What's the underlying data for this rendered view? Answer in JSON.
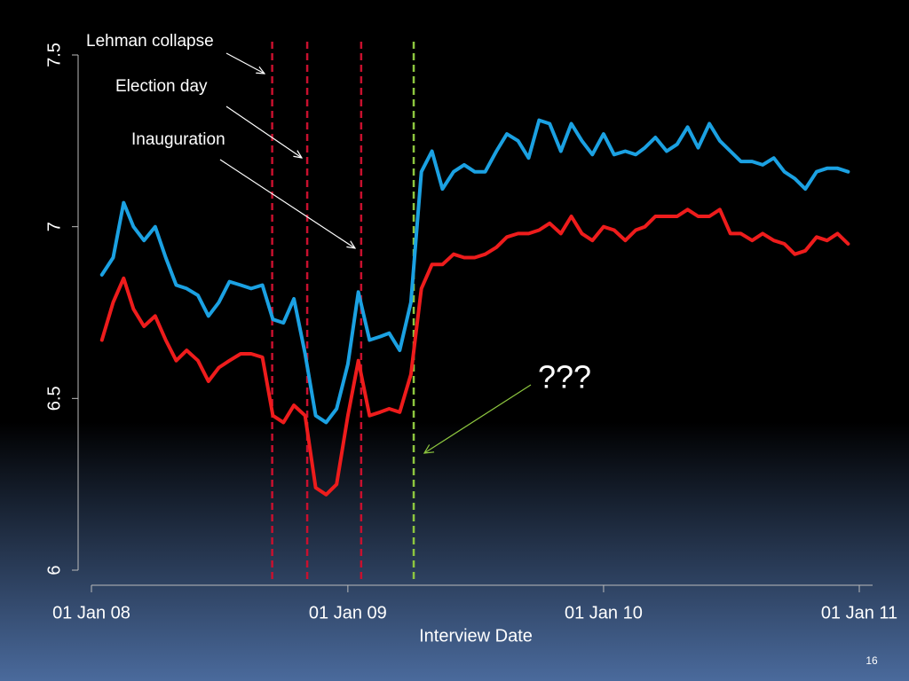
{
  "chart_data": {
    "type": "line",
    "x_label": "Interview Date",
    "slide_number": "16",
    "x": [
      "2008-01-16",
      "2008-02-01",
      "2008-02-16",
      "2008-03-01",
      "2008-03-16",
      "2008-04-01",
      "2008-04-16",
      "2008-05-01",
      "2008-05-16",
      "2008-06-01",
      "2008-06-16",
      "2008-07-01",
      "2008-07-16",
      "2008-08-01",
      "2008-08-16",
      "2008-09-01",
      "2008-09-16",
      "2008-10-01",
      "2008-10-16",
      "2008-11-01",
      "2008-11-16",
      "2008-12-01",
      "2008-12-16",
      "2009-01-01",
      "2009-01-16",
      "2009-02-01",
      "2009-02-16",
      "2009-03-01",
      "2009-03-16",
      "2009-04-01",
      "2009-04-16",
      "2009-05-01",
      "2009-05-16",
      "2009-06-01",
      "2009-06-16",
      "2009-07-01",
      "2009-07-16",
      "2009-08-01",
      "2009-08-16",
      "2009-09-01",
      "2009-09-16",
      "2009-10-01",
      "2009-10-16",
      "2009-11-01",
      "2009-11-16",
      "2009-12-01",
      "2009-12-16",
      "2010-01-01",
      "2010-01-16",
      "2010-02-01",
      "2010-02-16",
      "2010-03-01",
      "2010-03-16",
      "2010-04-01",
      "2010-04-16",
      "2010-05-01",
      "2010-05-16",
      "2010-06-01",
      "2010-06-16",
      "2010-07-01",
      "2010-07-16",
      "2010-08-01",
      "2010-08-16",
      "2010-09-01",
      "2010-09-16",
      "2010-10-01",
      "2010-10-16",
      "2010-11-01",
      "2010-11-16",
      "2010-12-01",
      "2010-12-16"
    ],
    "series": [
      {
        "color": "#1ba1e2",
        "values": [
          6.86,
          6.91,
          7.07,
          7.0,
          6.96,
          7.0,
          6.91,
          6.83,
          6.82,
          6.8,
          6.74,
          6.78,
          6.84,
          6.83,
          6.82,
          6.83,
          6.73,
          6.72,
          6.79,
          6.63,
          6.45,
          6.43,
          6.47,
          6.6,
          6.81,
          6.67,
          6.68,
          6.69,
          6.64,
          6.78,
          7.16,
          7.22,
          7.11,
          7.16,
          7.18,
          7.16,
          7.16,
          7.22,
          7.27,
          7.25,
          7.2,
          7.31,
          7.3,
          7.22,
          7.3,
          7.25,
          7.21,
          7.27,
          7.21,
          7.22,
          7.21,
          7.23,
          7.26,
          7.22,
          7.24,
          7.29,
          7.23,
          7.3,
          7.25,
          7.22,
          7.19,
          7.19,
          7.18,
          7.2,
          7.16,
          7.14,
          7.11,
          7.16,
          7.17,
          7.17,
          7.16
        ]
      },
      {
        "color": "#ee1c1c",
        "values": [
          6.67,
          6.78,
          6.85,
          6.76,
          6.71,
          6.74,
          6.67,
          6.61,
          6.64,
          6.61,
          6.55,
          6.59,
          6.61,
          6.63,
          6.63,
          6.62,
          6.45,
          6.43,
          6.48,
          6.45,
          6.24,
          6.22,
          6.25,
          6.45,
          6.61,
          6.45,
          6.46,
          6.47,
          6.46,
          6.57,
          6.82,
          6.89,
          6.89,
          6.92,
          6.91,
          6.91,
          6.92,
          6.94,
          6.97,
          6.98,
          6.98,
          6.99,
          7.01,
          6.98,
          7.03,
          6.98,
          6.96,
          7.0,
          6.99,
          6.96,
          6.99,
          7.0,
          7.03,
          7.03,
          7.03,
          7.05,
          7.03,
          7.03,
          7.05,
          6.98,
          6.98,
          6.96,
          6.98,
          6.96,
          6.95,
          6.92,
          6.93,
          6.97,
          6.96,
          6.98,
          6.95
        ]
      }
    ],
    "events": [
      {
        "date": "2008-09-15",
        "label": "Lehman collapse",
        "color": "#c8102e"
      },
      {
        "date": "2008-11-04",
        "label": "Election day",
        "color": "#c8102e"
      },
      {
        "date": "2009-01-20",
        "label": "Inauguration",
        "color": "#c8102e"
      },
      {
        "date": "2009-04-05",
        "label": "???",
        "color": "#8dc63f"
      }
    ],
    "xlim": [
      "2008-01-01",
      "2011-01-20"
    ],
    "xticks": [
      {
        "value": "2008-01-01",
        "label": "01 Jan 08"
      },
      {
        "value": "2009-01-01",
        "label": "01 Jan 09"
      },
      {
        "value": "2010-01-01",
        "label": "01 Jan 10"
      },
      {
        "value": "2011-01-01",
        "label": "01 Jan 11"
      }
    ],
    "ylim": [
      6,
      7.5
    ],
    "yticks": [
      6,
      6.5,
      7,
      7.5
    ]
  }
}
